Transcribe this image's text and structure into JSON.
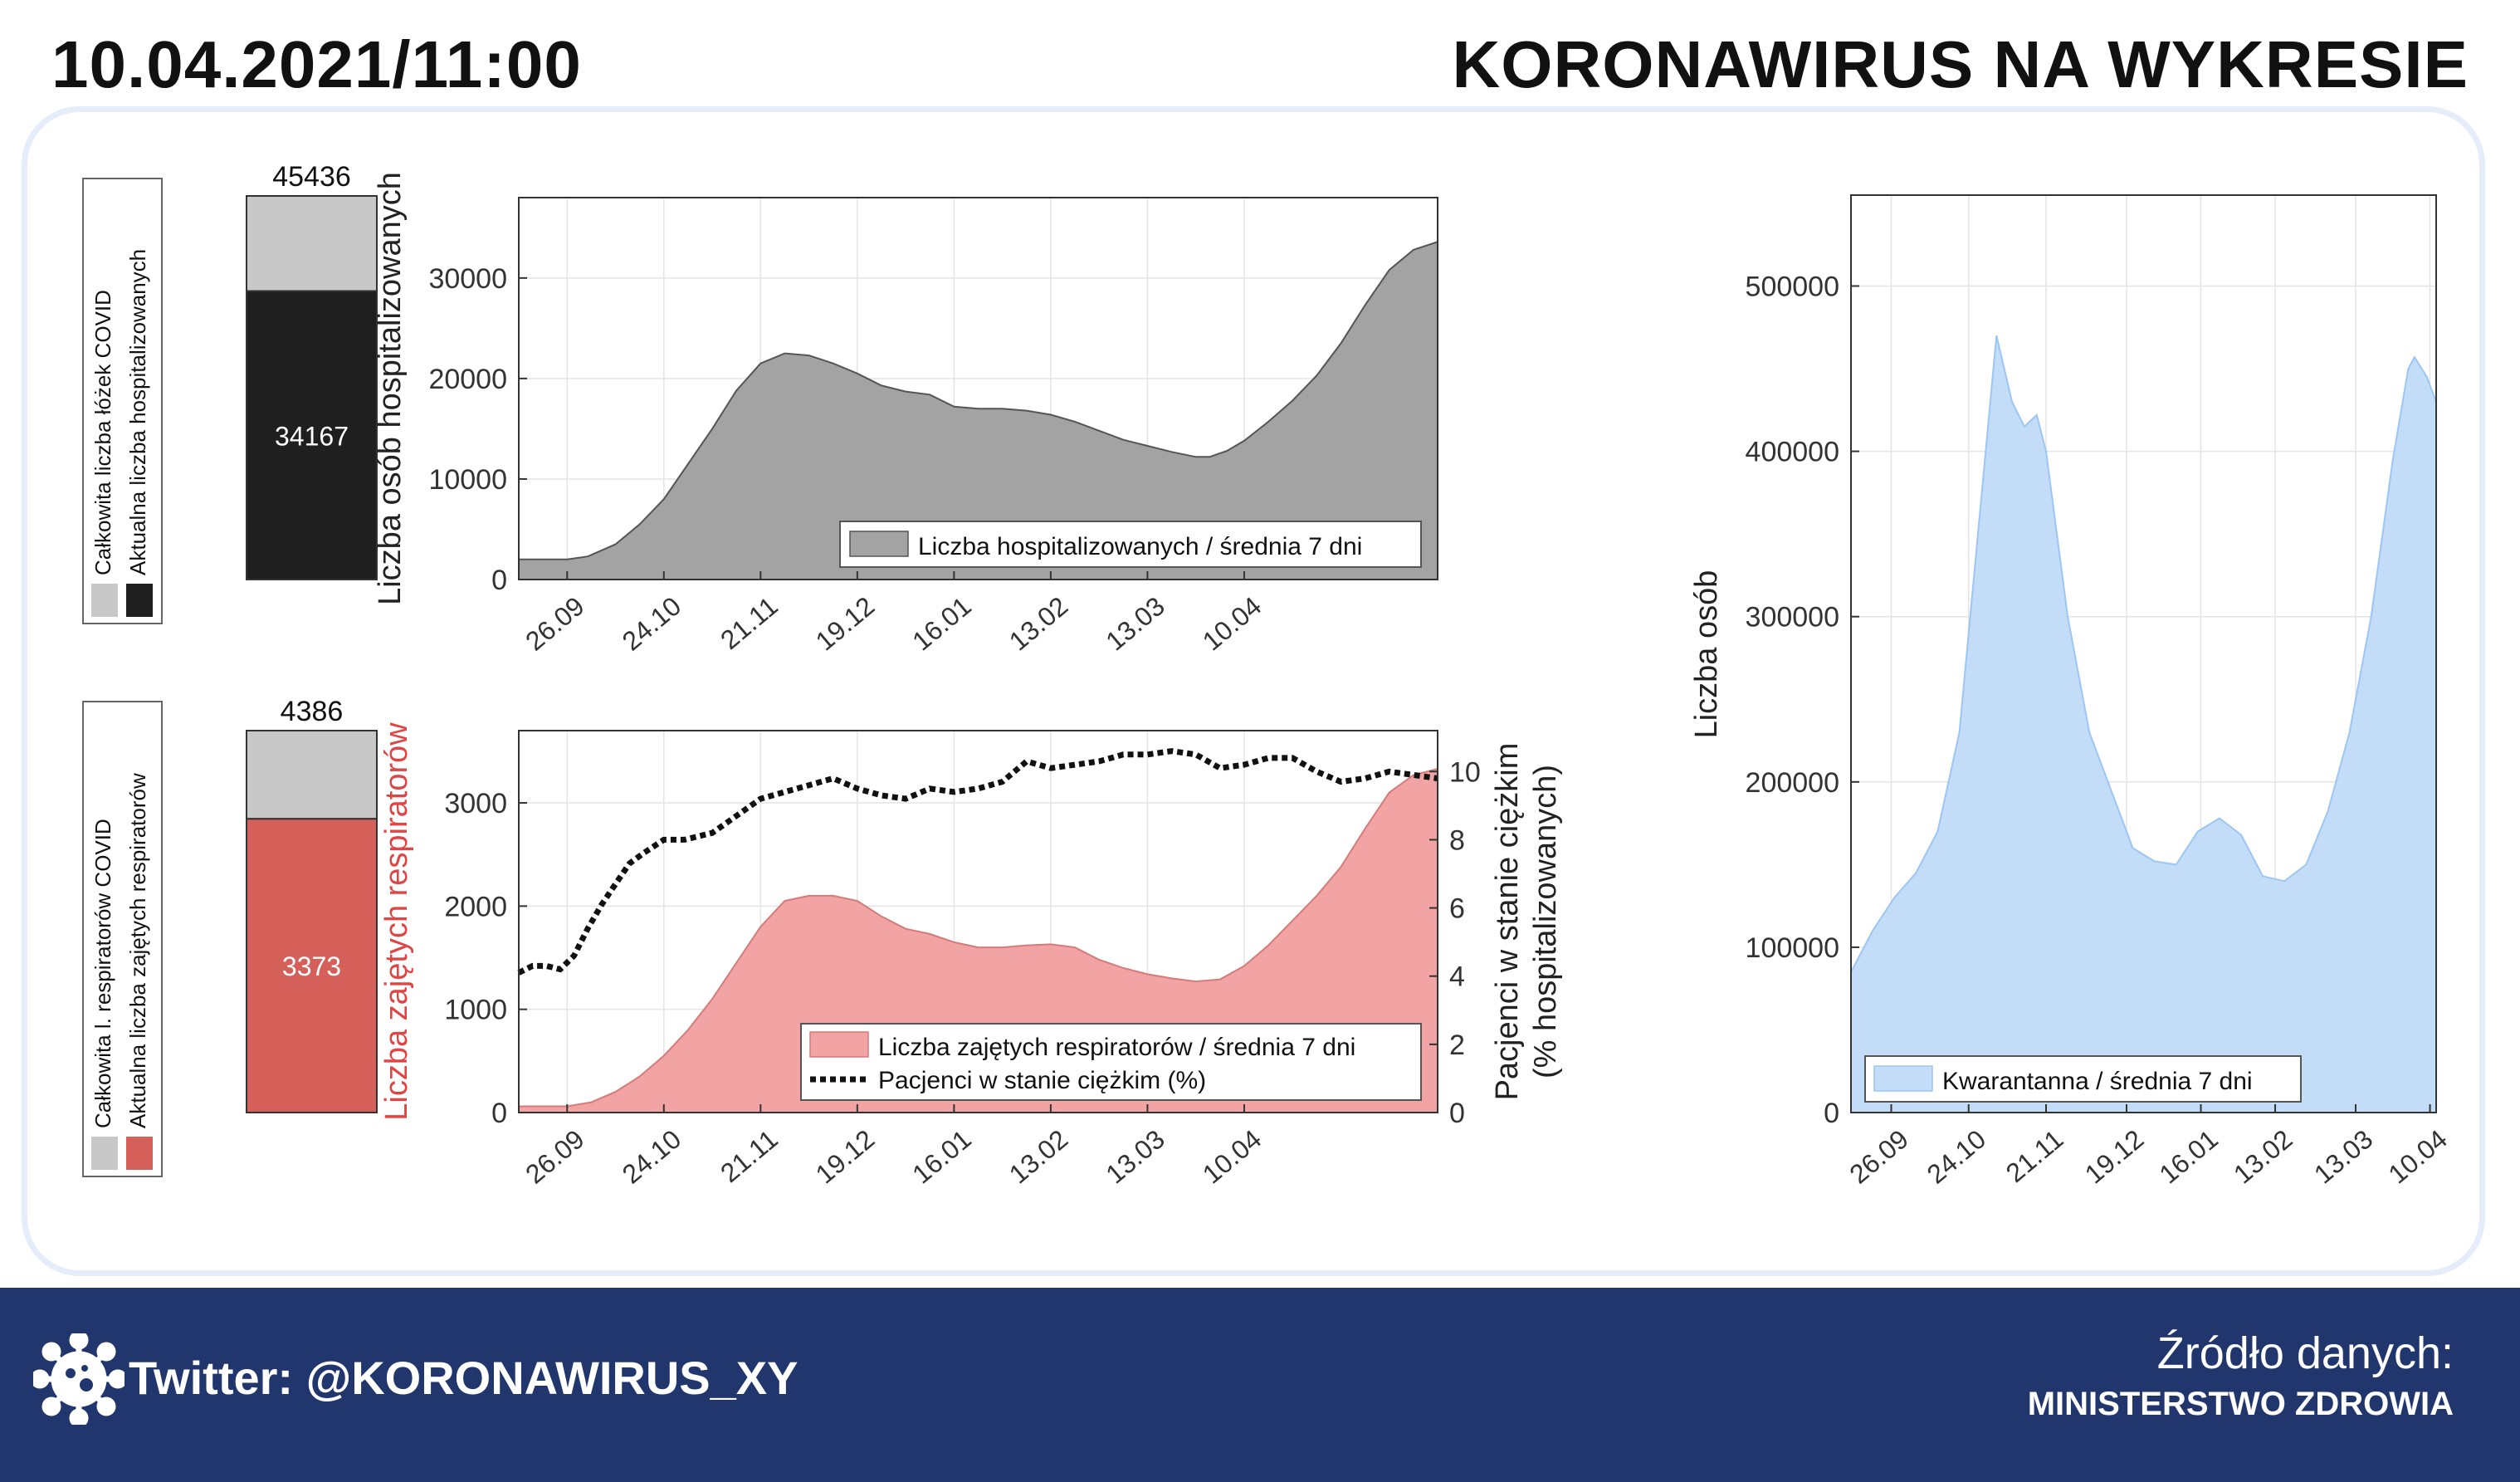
{
  "header": {
    "date": "10.04.2021/11:00",
    "title": "KORONAWIRUS NA WYKRESIE"
  },
  "footer": {
    "twitter": "Twitter: @KORONAWIRUS_XY",
    "source_label": "Źródło danych:",
    "source_value": "MINISTERSTWO ZDROWIA",
    "icon": "virus-icon"
  },
  "colors": {
    "gray_fill": "#a3a3a3",
    "black_bar": "#1f1f1f",
    "light_gray": "#c8c8c8",
    "red": "#d5605a",
    "red_fill": "#f2a3a3",
    "red_text": "#e04545",
    "blue_fill": "#c3dcf7",
    "blue_line": "#9dc6f2",
    "panel_border": "#e5ecfa",
    "footer_bg": "#22366e"
  },
  "x_dates": [
    "26.09",
    "24.10",
    "21.11",
    "19.12",
    "16.01",
    "13.02",
    "13.03",
    "10.04"
  ],
  "chart_data": [
    {
      "id": "beds",
      "type": "bar",
      "stacked": true,
      "legend": [
        "Całkowita liczba łóżek COVID",
        "Aktualna liczba hospitalizowanych"
      ],
      "total": 45436,
      "current": 34167,
      "total_label": "45436",
      "current_label": "34167"
    },
    {
      "id": "hospitalized",
      "type": "area",
      "ylabel": "Liczba osób hospitalizowanych",
      "ylim": [
        0,
        38000
      ],
      "yticks": [
        0,
        10000,
        20000,
        30000
      ],
      "ytick_labels": [
        "0",
        "10000",
        "20000",
        "30000"
      ],
      "xtick_labels": [
        "26.09",
        "24.10",
        "21.11",
        "19.12",
        "16.01",
        "13.02",
        "13.03",
        "10.04"
      ],
      "grid": true,
      "legend": "Liczba hospitalizowanych / średnia 7 dni",
      "legend_position": "bottom-right",
      "series": [
        {
          "name": "Liczba hospitalizowanych / średnia 7 dni",
          "points": [
            [
              0,
              2000
            ],
            [
              14,
              2000
            ],
            [
              20,
              2300
            ],
            [
              28,
              3500
            ],
            [
              35,
              5500
            ],
            [
              42,
              8000
            ],
            [
              56,
              15000
            ],
            [
              63,
              18800
            ],
            [
              70,
              21500
            ],
            [
              77,
              22500
            ],
            [
              84,
              22300
            ],
            [
              91,
              21500
            ],
            [
              98,
              20500
            ],
            [
              105,
              19300
            ],
            [
              112,
              18700
            ],
            [
              119,
              18400
            ],
            [
              126,
              17200
            ],
            [
              133,
              17000
            ],
            [
              140,
              17000
            ],
            [
              147,
              16800
            ],
            [
              154,
              16400
            ],
            [
              161,
              15700
            ],
            [
              168,
              14800
            ],
            [
              175,
              13900
            ],
            [
              182,
              13300
            ],
            [
              189,
              12700
            ],
            [
              196,
              12200
            ],
            [
              200,
              12200
            ],
            [
              205,
              12800
            ],
            [
              210,
              13800
            ],
            [
              217,
              15700
            ],
            [
              224,
              17800
            ],
            [
              231,
              20300
            ],
            [
              238,
              23500
            ],
            [
              245,
              27300
            ],
            [
              252,
              30800
            ],
            [
              259,
              32800
            ],
            [
              266,
              33600
            ]
          ]
        }
      ]
    },
    {
      "id": "respirators_bar",
      "type": "bar",
      "stacked": true,
      "legend": [
        "Całkowita l. respiratorów COVID",
        "Aktualna liczba zajętych respiratorów"
      ],
      "total": 4386,
      "current": 3373,
      "total_label": "4386",
      "current_label": "3373"
    },
    {
      "id": "respirators",
      "type": "area",
      "ylabel": "Liczba zajętych respiratorów",
      "ylabel_right": "Pacjenci w stanie ciężkim (% hospitalizowanych)",
      "ylim": [
        0,
        3700
      ],
      "yticks": [
        0,
        1000,
        2000,
        3000
      ],
      "ytick_labels": [
        "0",
        "1000",
        "2000",
        "3000"
      ],
      "y2lim": [
        0,
        11.2
      ],
      "y2ticks": [
        0,
        2,
        4,
        6,
        8,
        10
      ],
      "y2tick_labels": [
        "0",
        "2",
        "4",
        "6",
        "8",
        "10"
      ],
      "xtick_labels": [
        "26.09",
        "24.10",
        "21.11",
        "19.12",
        "16.01",
        "13.02",
        "13.03",
        "10.04"
      ],
      "grid": true,
      "legend": [
        "Liczba zajętych respiratorów / średnia 7 dni",
        "Pacjenci w stanie ciężkim (%)"
      ],
      "legend_position": "bottom-right",
      "series": [
        {
          "name": "Liczba zajętych respiratorów / średnia 7 dni",
          "points": [
            [
              0,
              60
            ],
            [
              14,
              60
            ],
            [
              21,
              100
            ],
            [
              28,
              200
            ],
            [
              35,
              350
            ],
            [
              42,
              550
            ],
            [
              49,
              800
            ],
            [
              56,
              1100
            ],
            [
              63,
              1450
            ],
            [
              70,
              1800
            ],
            [
              77,
              2050
            ],
            [
              84,
              2100
            ],
            [
              91,
              2100
            ],
            [
              98,
              2050
            ],
            [
              105,
              1900
            ],
            [
              112,
              1780
            ],
            [
              119,
              1730
            ],
            [
              126,
              1650
            ],
            [
              133,
              1600
            ],
            [
              140,
              1600
            ],
            [
              147,
              1620
            ],
            [
              154,
              1630
            ],
            [
              161,
              1600
            ],
            [
              168,
              1480
            ],
            [
              175,
              1400
            ],
            [
              182,
              1340
            ],
            [
              189,
              1300
            ],
            [
              196,
              1270
            ],
            [
              203,
              1290
            ],
            [
              210,
              1420
            ],
            [
              217,
              1620
            ],
            [
              224,
              1860
            ],
            [
              231,
              2100
            ],
            [
              238,
              2380
            ],
            [
              245,
              2750
            ],
            [
              252,
              3100
            ],
            [
              259,
              3270
            ],
            [
              266,
              3330
            ]
          ]
        },
        {
          "name": "Pacjenci w stanie ciężkim (%)",
          "style": "dotted",
          "points": [
            [
              0,
              4.1
            ],
            [
              4,
              4.3
            ],
            [
              8,
              4.3
            ],
            [
              12,
              4.2
            ],
            [
              16,
              4.6
            ],
            [
              20,
              5.4
            ],
            [
              24,
              6.1
            ],
            [
              28,
              6.7
            ],
            [
              32,
              7.3
            ],
            [
              36,
              7.6
            ],
            [
              42,
              8.0
            ],
            [
              48,
              8.0
            ],
            [
              56,
              8.2
            ],
            [
              63,
              8.7
            ],
            [
              70,
              9.2
            ],
            [
              77,
              9.4
            ],
            [
              84,
              9.6
            ],
            [
              91,
              9.8
            ],
            [
              98,
              9.5
            ],
            [
              105,
              9.3
            ],
            [
              112,
              9.2
            ],
            [
              119,
              9.5
            ],
            [
              126,
              9.4
            ],
            [
              133,
              9.5
            ],
            [
              140,
              9.7
            ],
            [
              147,
              10.3
            ],
            [
              154,
              10.1
            ],
            [
              161,
              10.2
            ],
            [
              168,
              10.3
            ],
            [
              175,
              10.5
            ],
            [
              182,
              10.5
            ],
            [
              189,
              10.6
            ],
            [
              196,
              10.5
            ],
            [
              203,
              10.1
            ],
            [
              210,
              10.2
            ],
            [
              217,
              10.4
            ],
            [
              224,
              10.4
            ],
            [
              231,
              10.0
            ],
            [
              238,
              9.7
            ],
            [
              245,
              9.8
            ],
            [
              252,
              10.0
            ],
            [
              259,
              9.9
            ],
            [
              266,
              9.8
            ]
          ]
        }
      ]
    },
    {
      "id": "quarantine",
      "type": "area",
      "ylabel": "Liczba osób",
      "ylim": [
        0,
        555000
      ],
      "yticks": [
        0,
        100000,
        200000,
        300000,
        400000,
        500000
      ],
      "ytick_labels": [
        "0",
        "100000",
        "200000",
        "300000",
        "400000",
        "500000"
      ],
      "xtick_labels": [
        "26.09",
        "24.10",
        "21.11",
        "19.12",
        "16.01",
        "13.02",
        "13.03",
        "10.04"
      ],
      "grid": true,
      "legend": "Kwarantanna / średnia 7 dni",
      "legend_position": "bottom-left",
      "series": [
        {
          "name": "Kwarantanna / średnia 7 dni",
          "points": [
            [
              0,
              85000
            ],
            [
              7,
              110000
            ],
            [
              14,
              130000
            ],
            [
              21,
              145000
            ],
            [
              28,
              170000
            ],
            [
              35,
              230000
            ],
            [
              42,
              370000
            ],
            [
              47,
              470000
            ],
            [
              52,
              430000
            ],
            [
              56,
              415000
            ],
            [
              60,
              422000
            ],
            [
              63,
              400000
            ],
            [
              70,
              300000
            ],
            [
              77,
              230000
            ],
            [
              84,
              195000
            ],
            [
              88,
              175000
            ],
            [
              91,
              160000
            ],
            [
              98,
              152000
            ],
            [
              105,
              150000
            ],
            [
              112,
              170000
            ],
            [
              119,
              178000
            ],
            [
              126,
              168000
            ],
            [
              133,
              143000
            ],
            [
              140,
              140000
            ],
            [
              147,
              150000
            ],
            [
              154,
              182000
            ],
            [
              161,
              230000
            ],
            [
              168,
              300000
            ],
            [
              175,
              395000
            ],
            [
              180,
              450000
            ],
            [
              182,
              457000
            ],
            [
              186,
              445000
            ],
            [
              189,
              430000
            ]
          ]
        }
      ]
    }
  ]
}
